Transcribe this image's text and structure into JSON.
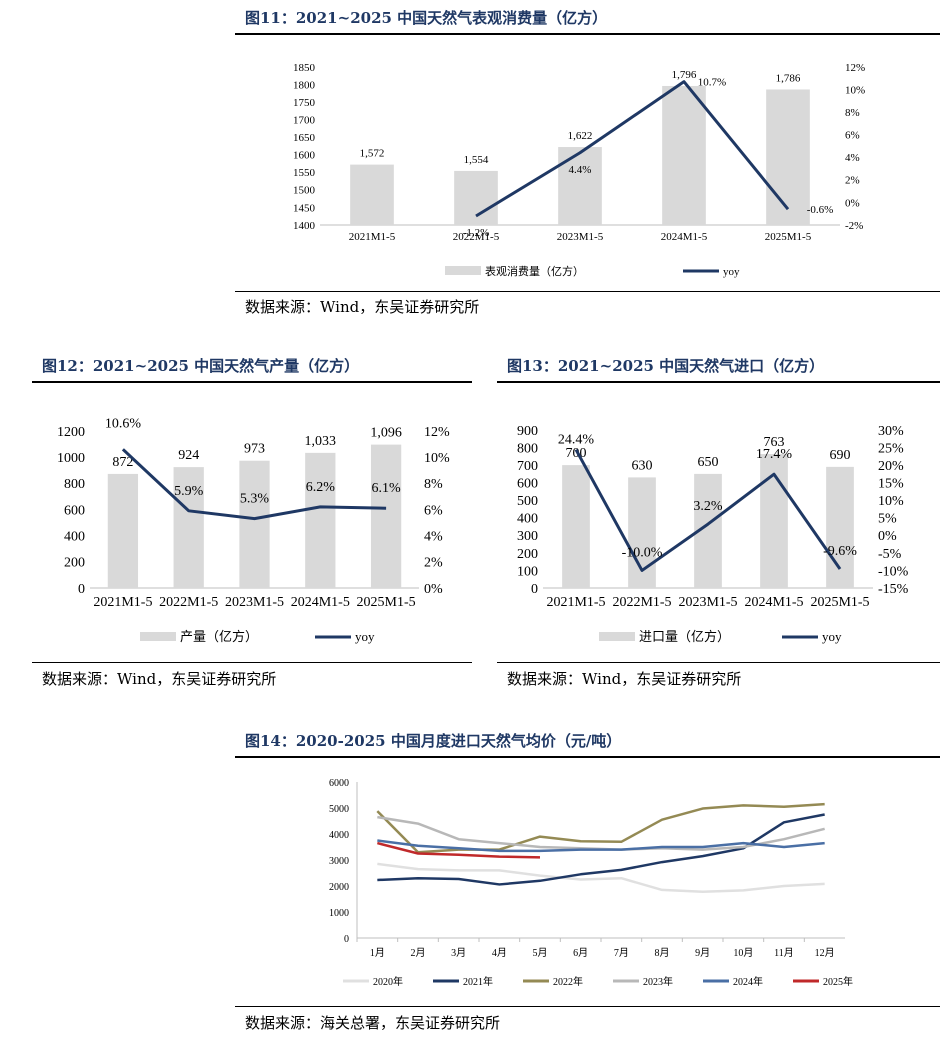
{
  "fig11": {
    "title": "图11：2021~2025 中国天然气表观消费量（亿方）",
    "source": "数据来源：Wind，东吴证券研究所",
    "chart_data": {
      "type": "bar",
      "categories": [
        "2021M1-5",
        "2022M1-5",
        "2023M1-5",
        "2024M1-5",
        "2025M1-5"
      ],
      "series": [
        {
          "name": "表观消费量（亿方）",
          "type": "bar",
          "axis": "left",
          "values": [
            1572,
            1554,
            1622,
            1796,
            1786
          ],
          "labels": [
            "1,572",
            "1,554",
            "1,622",
            "1,796",
            "1,786"
          ]
        },
        {
          "name": "yoy",
          "type": "line",
          "axis": "right",
          "values": [
            null,
            -1.2,
            4.4,
            10.7,
            -0.6
          ],
          "labels": [
            "",
            "-1.2%",
            "4.4%",
            "10.7%",
            "-0.6%"
          ]
        }
      ],
      "ylim_left": [
        1400,
        1850
      ],
      "yticks_left": [
        "1400",
        "1450",
        "1500",
        "1550",
        "1600",
        "1650",
        "1700",
        "1750",
        "1800",
        "1850"
      ],
      "ylim_right": [
        -2,
        12
      ],
      "yticks_right": [
        "-2%",
        "0%",
        "2%",
        "4%",
        "6%",
        "8%",
        "10%",
        "12%"
      ],
      "legend_position": "bottom",
      "grid": false,
      "colors": {
        "bar": "#d9d9d9",
        "line": "#1f3864"
      }
    }
  },
  "fig12": {
    "title": "图12：2021~2025 中国天然气产量（亿方）",
    "source": "数据来源：Wind，东吴证券研究所",
    "chart_data": {
      "type": "bar",
      "categories": [
        "2021M1-5",
        "2022M1-5",
        "2023M1-5",
        "2024M1-5",
        "2025M1-5"
      ],
      "series": [
        {
          "name": "产量（亿方）",
          "type": "bar",
          "axis": "left",
          "values": [
            872,
            924,
            973,
            1033,
            1096
          ],
          "labels": [
            "872",
            "924",
            "973",
            "1,033",
            "1,096"
          ]
        },
        {
          "name": "yoy",
          "type": "line",
          "axis": "right",
          "values": [
            10.6,
            5.9,
            5.3,
            6.2,
            6.1
          ],
          "labels": [
            "10.6%",
            "5.9%",
            "5.3%",
            "6.2%",
            "6.1%"
          ]
        }
      ],
      "ylim_left": [
        0,
        1200
      ],
      "yticks_left": [
        "0",
        "200",
        "400",
        "600",
        "800",
        "1000",
        "1200"
      ],
      "ylim_right": [
        0,
        12
      ],
      "yticks_right": [
        "0%",
        "2%",
        "4%",
        "6%",
        "8%",
        "10%",
        "12%"
      ],
      "legend_position": "bottom",
      "grid": false,
      "colors": {
        "bar": "#d9d9d9",
        "line": "#1f3864"
      }
    }
  },
  "fig13": {
    "title": "图13：2021~2025 中国天然气进口（亿方）",
    "source": "数据来源：Wind，东吴证券研究所",
    "chart_data": {
      "type": "bar",
      "categories": [
        "2021M1-5",
        "2022M1-5",
        "2023M1-5",
        "2024M1-5",
        "2025M1-5"
      ],
      "series": [
        {
          "name": "进口量（亿方）",
          "type": "bar",
          "axis": "left",
          "values": [
            700,
            630,
            650,
            763,
            690
          ],
          "labels": [
            "700",
            "630",
            "650",
            "763",
            "690"
          ]
        },
        {
          "name": "yoy",
          "type": "line",
          "axis": "right",
          "values": [
            24.4,
            -10.0,
            3.2,
            17.4,
            -9.6
          ],
          "labels": [
            "24.4%",
            "-10.0%",
            "3.2%",
            "17.4%",
            "-9.6%"
          ]
        }
      ],
      "ylim_left": [
        0,
        900
      ],
      "yticks_left": [
        "0",
        "100",
        "200",
        "300",
        "400",
        "500",
        "600",
        "700",
        "800",
        "900"
      ],
      "ylim_right": [
        -15,
        30
      ],
      "yticks_right": [
        "-15%",
        "-10%",
        "-5%",
        "0%",
        "5%",
        "10%",
        "15%",
        "20%",
        "25%",
        "30%"
      ],
      "legend_position": "bottom",
      "grid": false,
      "colors": {
        "bar": "#d9d9d9",
        "line": "#1f3864"
      }
    }
  },
  "fig14": {
    "title": "图14：2020-2025 中国月度进口天然气均价（元/吨）",
    "source": "数据来源：海关总署，东吴证券研究所",
    "chart_data": {
      "type": "line",
      "categories": [
        "1月",
        "2月",
        "3月",
        "4月",
        "5月",
        "6月",
        "7月",
        "8月",
        "9月",
        "10月",
        "11月",
        "12月"
      ],
      "series": [
        {
          "name": "2020年",
          "color": "#e0e0e0",
          "values": [
            2850,
            2650,
            2600,
            2600,
            2400,
            2250,
            2300,
            1850,
            1780,
            1830,
            2000,
            2080
          ]
        },
        {
          "name": "2021年",
          "color": "#1f3864",
          "values": [
            2230,
            2300,
            2270,
            2060,
            2200,
            2450,
            2620,
            2920,
            3150,
            3450,
            4450,
            4750
          ]
        },
        {
          "name": "2022年",
          "color": "#948a54",
          "values": [
            4880,
            3300,
            3400,
            3400,
            3900,
            3720,
            3700,
            4550,
            4980,
            5100,
            5050,
            5150
          ]
        },
        {
          "name": "2023年",
          "color": "#b8b8b8",
          "values": [
            4650,
            4400,
            3800,
            3650,
            3500,
            3450,
            3400,
            3450,
            3400,
            3500,
            3800,
            4200
          ]
        },
        {
          "name": "2024年",
          "color": "#4a6fa5",
          "values": [
            3750,
            3550,
            3450,
            3350,
            3350,
            3400,
            3400,
            3500,
            3500,
            3650,
            3500,
            3650
          ]
        },
        {
          "name": "2025年",
          "color": "#c0292a",
          "values": [
            3650,
            3250,
            3200,
            3130,
            3100,
            null,
            null,
            null,
            null,
            null,
            null,
            null
          ]
        }
      ],
      "ylim": [
        0,
        6000
      ],
      "yticks": [
        "0",
        "1000",
        "2000",
        "3000",
        "4000",
        "5000",
        "6000"
      ],
      "legend_position": "bottom",
      "grid": false
    }
  }
}
